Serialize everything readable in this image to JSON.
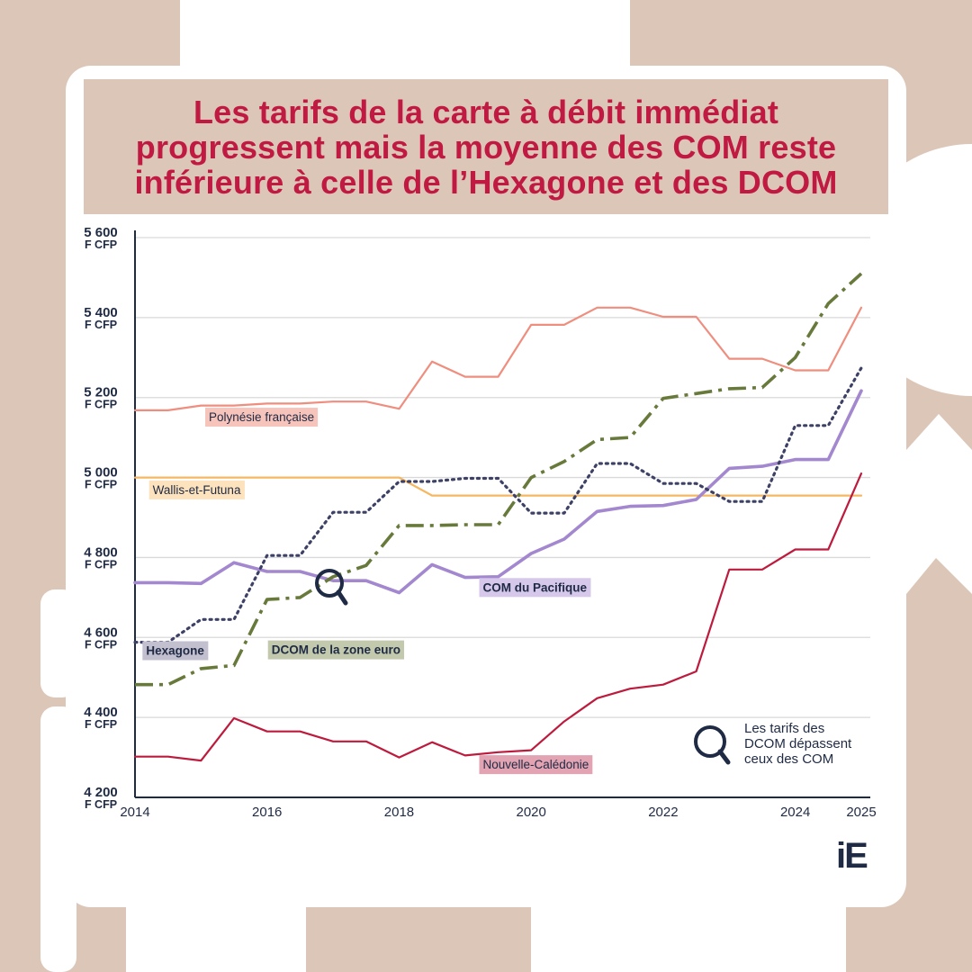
{
  "title": {
    "line1": "Les tarifs de la carte à débit immédiat",
    "line2": "progressent mais la moyenne des COM reste",
    "line3": "inférieure à celle de l’Hexagone et des DCOM"
  },
  "annotation": {
    "line1": "Les tarifs des",
    "line2": "DCOM dépassent",
    "line3": "ceux des COM"
  },
  "logo": "iE",
  "chart_data": {
    "type": "line",
    "ylim": [
      4200,
      5600
    ],
    "xlim": [
      2014,
      2025
    ],
    "y_ticks": [
      {
        "value": 5600,
        "line1": "5 600",
        "line2": "F CFP"
      },
      {
        "value": 5400,
        "line1": "5 400",
        "line2": "F CFP"
      },
      {
        "value": 5200,
        "line1": "5 200",
        "line2": "F CFP"
      },
      {
        "value": 5000,
        "line1": "5 000",
        "line2": "F CFP"
      },
      {
        "value": 4800,
        "line1": "4 800",
        "line2": "F CFP"
      },
      {
        "value": 4600,
        "line1": "4 600",
        "line2": "F CFP"
      },
      {
        "value": 4400,
        "line1": "4 400",
        "line2": "F CFP"
      },
      {
        "value": 4200,
        "line1": "4 200",
        "line2": "F CFP"
      }
    ],
    "x_ticks": [
      "2014",
      "2016",
      "2018",
      "2020",
      "2022",
      "2024",
      "2025"
    ],
    "x_tick_values": [
      2014,
      2016,
      2018,
      2020,
      2022,
      2024,
      2025
    ],
    "series": [
      {
        "name": "Polynésie française",
        "color": "#ef8e7e",
        "dash": "none",
        "width": 2.2,
        "label_bg": "#f7c4bb",
        "label_bold": false,
        "label_x": 2015.05,
        "label_y": 5152,
        "x": [
          2014,
          2014.5,
          2015,
          2015.5,
          2016,
          2016.5,
          2017,
          2017.5,
          2018,
          2018.5,
          2019,
          2019.5,
          2020,
          2020.5,
          2021,
          2021.5,
          2022,
          2022.5,
          2023,
          2023.5,
          2024,
          2024.5,
          2025
        ],
        "y": [
          5168,
          5168,
          5180,
          5180,
          5185,
          5185,
          5190,
          5190,
          5172,
          5290,
          5252,
          5252,
          5382,
          5382,
          5425,
          5425,
          5402,
          5402,
          5297,
          5297,
          5268,
          5268,
          5425
        ]
      },
      {
        "name": "Wallis-et-Futuna",
        "color": "#f6b760",
        "dash": "none",
        "width": 2.2,
        "label_bg": "#fde3bd",
        "label_bold": false,
        "label_x": 2014.2,
        "label_y": 4970,
        "x": [
          2014,
          2014.5,
          2015,
          2015.5,
          2016,
          2016.5,
          2017,
          2017.5,
          2018,
          2018.5,
          2019,
          2019.5,
          2020,
          2020.5,
          2021,
          2021.5,
          2022,
          2022.5,
          2023,
          2023.5,
          2024,
          2024.5,
          2025
        ],
        "y": [
          5000,
          5000,
          5000,
          5000,
          5000,
          5000,
          5000,
          5000,
          5000,
          4955,
          4955,
          4955,
          4955,
          4955,
          4955,
          4955,
          4955,
          4955,
          4955,
          4955,
          4955,
          4955,
          4955
        ]
      },
      {
        "name": "COM du Pacifique",
        "color": "#a388cf",
        "dash": "none",
        "width": 3.6,
        "label_bg": "#d5c8ea",
        "label_bold": true,
        "label_x": 2019.2,
        "label_y": 4726,
        "x": [
          2014,
          2014.5,
          2015,
          2015.5,
          2016,
          2016.5,
          2017,
          2017.5,
          2018,
          2018.5,
          2019,
          2019.5,
          2020,
          2020.5,
          2021,
          2021.5,
          2022,
          2022.5,
          2023,
          2023.5,
          2024,
          2024.5,
          2025
        ],
        "y": [
          4737,
          4737,
          4735,
          4787,
          4765,
          4765,
          4742,
          4742,
          4712,
          4782,
          4750,
          4752,
          4810,
          4846,
          4915,
          4928,
          4930,
          4945,
          5023,
          5028,
          5045,
          5045,
          5217
        ]
      },
      {
        "name": "Hexagone",
        "color": "#3d4166",
        "dash": "2 5",
        "cap": "round",
        "width": 3.2,
        "label_bg": "#c2bfcf",
        "label_bold": true,
        "label_x": 2014.1,
        "label_y": 4568,
        "x": [
          2014,
          2014.5,
          2015,
          2015.5,
          2016,
          2016.5,
          2017,
          2017.5,
          2018,
          2018.5,
          2019,
          2019.5,
          2020,
          2020.5,
          2021,
          2021.5,
          2022,
          2022.5,
          2023,
          2023.5,
          2024,
          2024.5,
          2025
        ],
        "y": [
          4588,
          4588,
          4645,
          4645,
          4805,
          4805,
          4913,
          4913,
          4990,
          4990,
          4998,
          4998,
          4911,
          4911,
          5035,
          5035,
          4985,
          4985,
          4940,
          4940,
          5130,
          5130,
          5274
        ]
      },
      {
        "name": "DCOM de la zone euro",
        "color": "#687a3b",
        "dash": "20 7 4 7",
        "cap": "butt",
        "width": 3.6,
        "label_bg": "#c2c9ad",
        "label_bold": true,
        "label_x": 2016,
        "label_y": 4570,
        "x": [
          2014,
          2014.5,
          2015,
          2015.5,
          2016,
          2016.5,
          2017,
          2017.5,
          2018,
          2018.5,
          2019,
          2019.5,
          2020,
          2020.5,
          2021,
          2021.5,
          2022,
          2022.5,
          2023,
          2023.5,
          2024,
          2024.5,
          2025
        ],
        "y": [
          4482,
          4482,
          4522,
          4530,
          4695,
          4700,
          4752,
          4780,
          4880,
          4880,
          4882,
          4882,
          5000,
          5040,
          5095,
          5100,
          5198,
          5210,
          5222,
          5225,
          5300,
          5435,
          5510
        ]
      },
      {
        "name": "Nouvelle-Calédonie",
        "color": "#bd1b3e",
        "dash": "none",
        "width": 2.2,
        "label_bg": "#e2a3b2",
        "label_bold": false,
        "label_x": 2019.2,
        "label_y": 4283,
        "x": [
          2014,
          2014.5,
          2015,
          2015.5,
          2016,
          2016.5,
          2017,
          2017.5,
          2018,
          2018.5,
          2019,
          2019.5,
          2020,
          2020.5,
          2021,
          2021.5,
          2022,
          2022.5,
          2023,
          2023.5,
          2024,
          2024.5,
          2025
        ],
        "y": [
          4302,
          4302,
          4292,
          4398,
          4365,
          4365,
          4340,
          4340,
          4300,
          4338,
          4305,
          4313,
          4318,
          4390,
          4448,
          4472,
          4482,
          4515,
          4770,
          4770,
          4820,
          4820,
          5010
        ]
      }
    ]
  }
}
